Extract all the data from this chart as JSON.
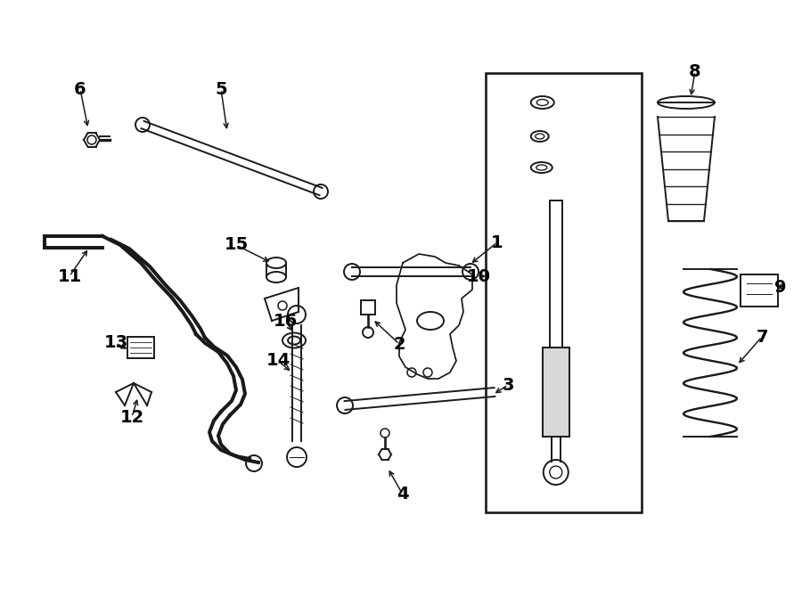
{
  "bg_color": "#ffffff",
  "line_color": "#1a1a1a",
  "figsize": [
    9.0,
    6.61
  ],
  "dpi": 100,
  "lw": 1.4
}
